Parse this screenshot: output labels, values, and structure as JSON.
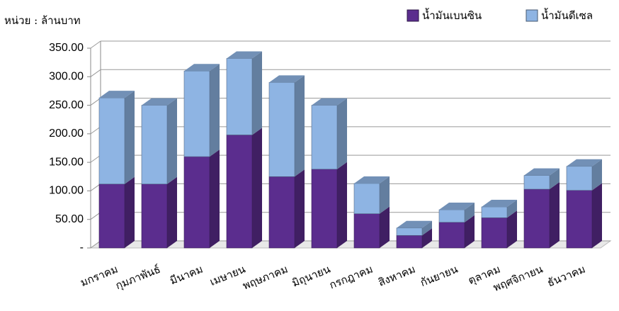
{
  "chart_data": {
    "type": "bar",
    "stacked": true,
    "subtitle": "หน่วย : ล้านบาท",
    "categories": [
      "มกราคม",
      "กุมภาพันธ์",
      "มีนาคม",
      "เมษายน",
      "พฤษภาคม",
      "มิถุนายน",
      "กรกฎาคม",
      "สิงหาคม",
      "กันยายน",
      "ตุลาคม",
      "พฤศจิกายน",
      "ธันวาคม"
    ],
    "series": [
      {
        "name": "น้ำมันเบนซิน",
        "color": "#5b2d8e",
        "values": [
          112,
          112,
          160,
          198,
          125,
          138,
          60,
          22,
          45,
          53,
          103,
          101
        ]
      },
      {
        "name": "น้ำมันดีเซล",
        "color": "#8eb4e3",
        "values": [
          151,
          138,
          150,
          134,
          165,
          112,
          53,
          13,
          22,
          19,
          24,
          42
        ]
      }
    ],
    "ylim": [
      0,
      350
    ],
    "yticks": [
      {
        "value": 0,
        "label": "-"
      },
      {
        "value": 50,
        "label": "50.00"
      },
      {
        "value": 100,
        "label": "100.00"
      },
      {
        "value": 150,
        "label": "150.00"
      },
      {
        "value": 200,
        "label": "200.00"
      },
      {
        "value": 250,
        "label": "250.00"
      },
      {
        "value": 300,
        "label": "300.00"
      },
      {
        "value": 350,
        "label": "350.00"
      }
    ],
    "grid": true,
    "legend": "top-right"
  }
}
